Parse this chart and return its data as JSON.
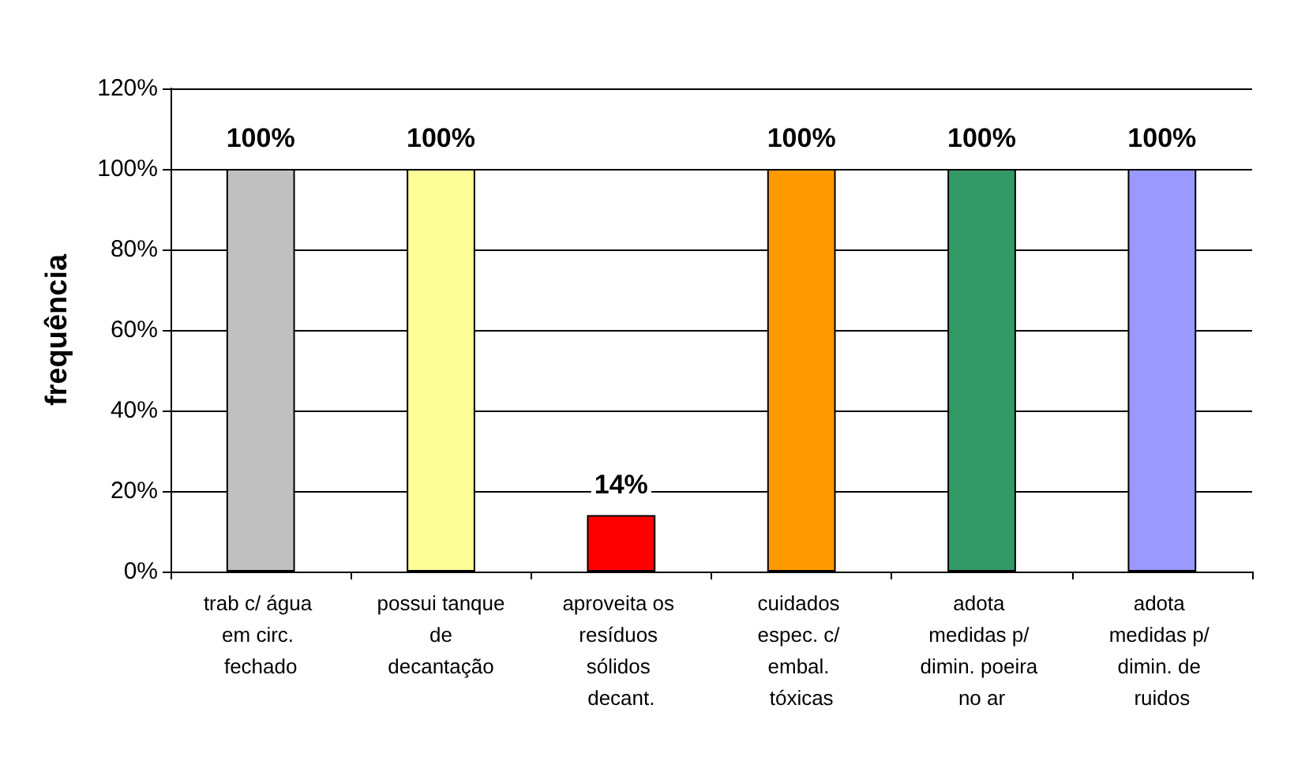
{
  "chart_data": {
    "type": "bar",
    "ylabel": "frequência",
    "categories": [
      "trab c/ água em circ. fechado",
      "possui tanque de decantação",
      "aproveita os resíduos sólidos decant.",
      "cuidados espec. c/ embal. tóxicas",
      "adota medidas p/ dimin. poeira no ar",
      "adota medidas p/ dimin. de ruidos"
    ],
    "values": [
      100,
      100,
      14,
      100,
      100,
      100
    ],
    "colors": [
      "#c0c0c0",
      "#ffff99",
      "#ff0000",
      "#ff9900",
      "#339966",
      "#9999ff"
    ],
    "value_labels": [
      "100%",
      "100%",
      "14%",
      "100%",
      "100%",
      "100%"
    ],
    "ylim": [
      0,
      120
    ],
    "yticks": [
      {
        "value": 0,
        "label": "0%"
      },
      {
        "value": 20,
        "label": "20%"
      },
      {
        "value": 40,
        "label": "40%"
      },
      {
        "value": 60,
        "label": "60%"
      },
      {
        "value": 80,
        "label": "80%"
      },
      {
        "value": 100,
        "label": "100%"
      },
      {
        "value": 120,
        "label": "120%"
      }
    ],
    "grid": "y"
  }
}
